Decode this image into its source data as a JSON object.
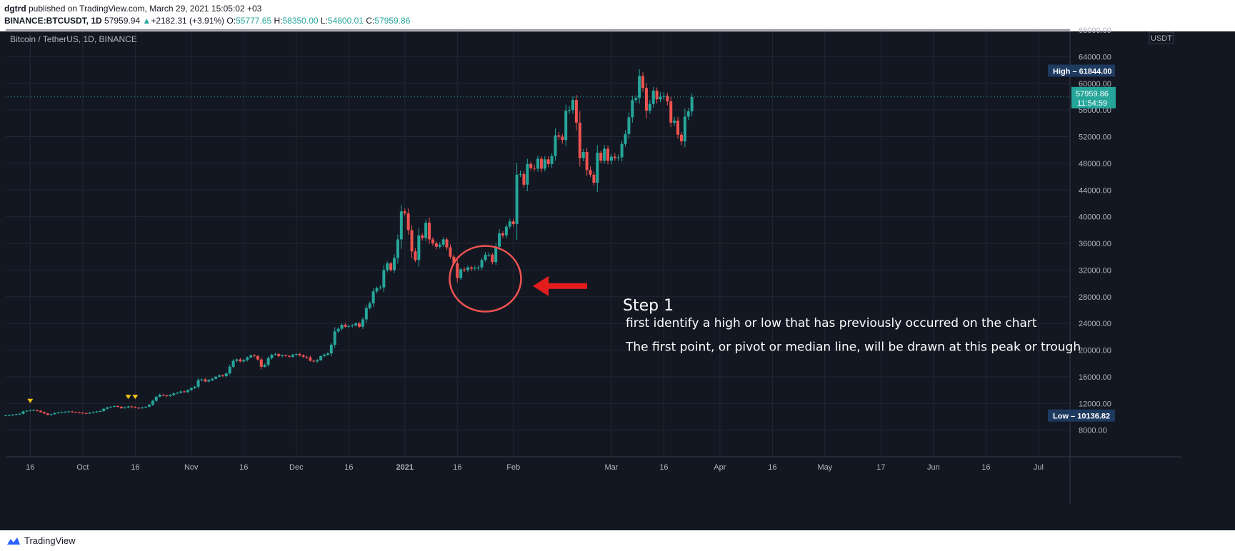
{
  "header": {
    "publisher": "dgtrd",
    "published_text": "published on TradingView.com, March 29, 2021 15:05:02 +03",
    "symbol": "BINANCE:BTCUSDT, 1D",
    "last": "57959.94",
    "change": "+2182.31 (+3.91%)",
    "o_label": "O:",
    "o": "55777.65",
    "h_label": "H:",
    "h": "58350.00",
    "l_label": "L:",
    "l": "54800.01",
    "c_label": "C:",
    "c": "57959.86"
  },
  "footer": {
    "brand": "TradingView"
  },
  "colors": {
    "up": "#26a69a",
    "down": "#ef5350",
    "bg": "#131722",
    "grid": "#232733",
    "circle": "#ef5350",
    "arrow": "#e51c1c"
  },
  "chart_data": {
    "type": "candlestick",
    "title": "Bitcoin / TetherUS, 1D, BINANCE",
    "currency": "USDT",
    "y_range": [
      4000,
      68000
    ],
    "y_ticks": [
      8000,
      12000,
      16000,
      20000,
      24000,
      28000,
      32000,
      36000,
      40000,
      44000,
      48000,
      52000,
      56000,
      60000,
      64000,
      68000
    ],
    "y_tick_labels": [
      "8000.00",
      "12000.00",
      "16000.00",
      "20000.00",
      "24000.00",
      "28000.00",
      "32000.00",
      "36000.00",
      "40000.00",
      "44000.00",
      "48000.00",
      "52000.00",
      "56000.00",
      "60000.00",
      "64000.00",
      "68000.00"
    ],
    "x_range": [
      "2020-09-09",
      "2021-07-10"
    ],
    "x_ticks": [
      {
        "date": "2020-09-16",
        "label": "16",
        "bold": false
      },
      {
        "date": "2020-10-01",
        "label": "Oct",
        "bold": false
      },
      {
        "date": "2020-10-16",
        "label": "16",
        "bold": false
      },
      {
        "date": "2020-11-01",
        "label": "Nov",
        "bold": false
      },
      {
        "date": "2020-11-16",
        "label": "16",
        "bold": false
      },
      {
        "date": "2020-12-01",
        "label": "Dec",
        "bold": false
      },
      {
        "date": "2020-12-16",
        "label": "16",
        "bold": false
      },
      {
        "date": "2021-01-01",
        "label": "2021",
        "bold": true
      },
      {
        "date": "2021-01-16",
        "label": "16",
        "bold": false
      },
      {
        "date": "2021-02-01",
        "label": "Feb",
        "bold": false
      },
      {
        "date": "2021-03-01",
        "label": "Mar",
        "bold": false
      },
      {
        "date": "2021-03-16",
        "label": "16",
        "bold": false
      },
      {
        "date": "2021-04-01",
        "label": "Apr",
        "bold": false
      },
      {
        "date": "2021-04-16",
        "label": "16",
        "bold": false
      },
      {
        "date": "2021-05-01",
        "label": "May",
        "bold": false
      },
      {
        "date": "2021-05-17",
        "label": "17",
        "bold": false
      },
      {
        "date": "2021-06-01",
        "label": "Jun",
        "bold": false
      },
      {
        "date": "2021-06-16",
        "label": "16",
        "bold": false
      },
      {
        "date": "2021-07-01",
        "label": "Jul",
        "bold": false
      }
    ],
    "first_date": "2020-09-09",
    "closes": [
      10200,
      10250,
      10320,
      10380,
      10450,
      10800,
      10900,
      10950,
      11000,
      10900,
      10700,
      10500,
      10300,
      10400,
      10550,
      10650,
      10700,
      10750,
      10800,
      10700,
      10650,
      10600,
      10550,
      10500,
      10600,
      10700,
      10800,
      10850,
      11200,
      11400,
      11500,
      11600,
      11500,
      11300,
      11400,
      11550,
      11450,
      11350,
      11300,
      11400,
      11500,
      11800,
      12400,
      13000,
      13300,
      13200,
      13100,
      13250,
      13500,
      13600,
      13800,
      13700,
      14000,
      14300,
      14500,
      15500,
      15600,
      15300,
      15500,
      15700,
      16000,
      16200,
      16100,
      16500,
      17500,
      18400,
      18600,
      18300,
      18500,
      18900,
      19200,
      19100,
      18600,
      17500,
      17800,
      18800,
      19300,
      19400,
      19100,
      19200,
      19100,
      19000,
      19300,
      19400,
      19200,
      19000,
      18900,
      18400,
      18300,
      18500,
      19100,
      19300,
      19500,
      20800,
      22800,
      23200,
      23800,
      23500,
      23600,
      23700,
      24000,
      23500,
      24600,
      26300,
      27000,
      28800,
      29300,
      29400,
      32000,
      33000,
      32000,
      33800,
      36600,
      40800,
      40500,
      38000,
      34800,
      33500,
      37200,
      36800,
      39100,
      36600,
      36000,
      35500,
      35800,
      36600,
      35400,
      34000,
      33000,
      30800,
      32100,
      32000,
      32400,
      32200,
      32300,
      32400,
      33500,
      34300,
      34300,
      33200,
      35500,
      37500,
      37200,
      38500,
      39300,
      38900,
      46300,
      46400,
      44800,
      47900,
      47300,
      47200,
      48700,
      47200,
      48600,
      47900,
      49100,
      52200,
      52000,
      51500,
      55900,
      56000,
      57500,
      54100,
      48800,
      49700,
      47000,
      46300,
      45100,
      49600,
      48400,
      50200,
      48400,
      49000,
      48800,
      48900,
      50900,
      52400,
      54900,
      57500,
      57800,
      61100,
      59300,
      55900,
      56900,
      58900,
      57600,
      58000,
      58100,
      57300,
      54100,
      54400,
      52300,
      51300,
      55000,
      55800,
      57960
    ]
  },
  "annotations": {
    "chart_label": "Bitcoin / TetherUS, 1D, BINANCE",
    "currency_label": "USDT",
    "high_label": "High",
    "high_value": "61844.00",
    "low_label": "Low",
    "low_value": "10136.82",
    "current_price": "57959.86",
    "countdown": "11:54:59",
    "step_title": "Step 1",
    "step_line1": "first identify a high or low that has previously occurred on the chart",
    "step_line2": "The first point, or pivot or median line, will be drawn at this peak or trough"
  }
}
